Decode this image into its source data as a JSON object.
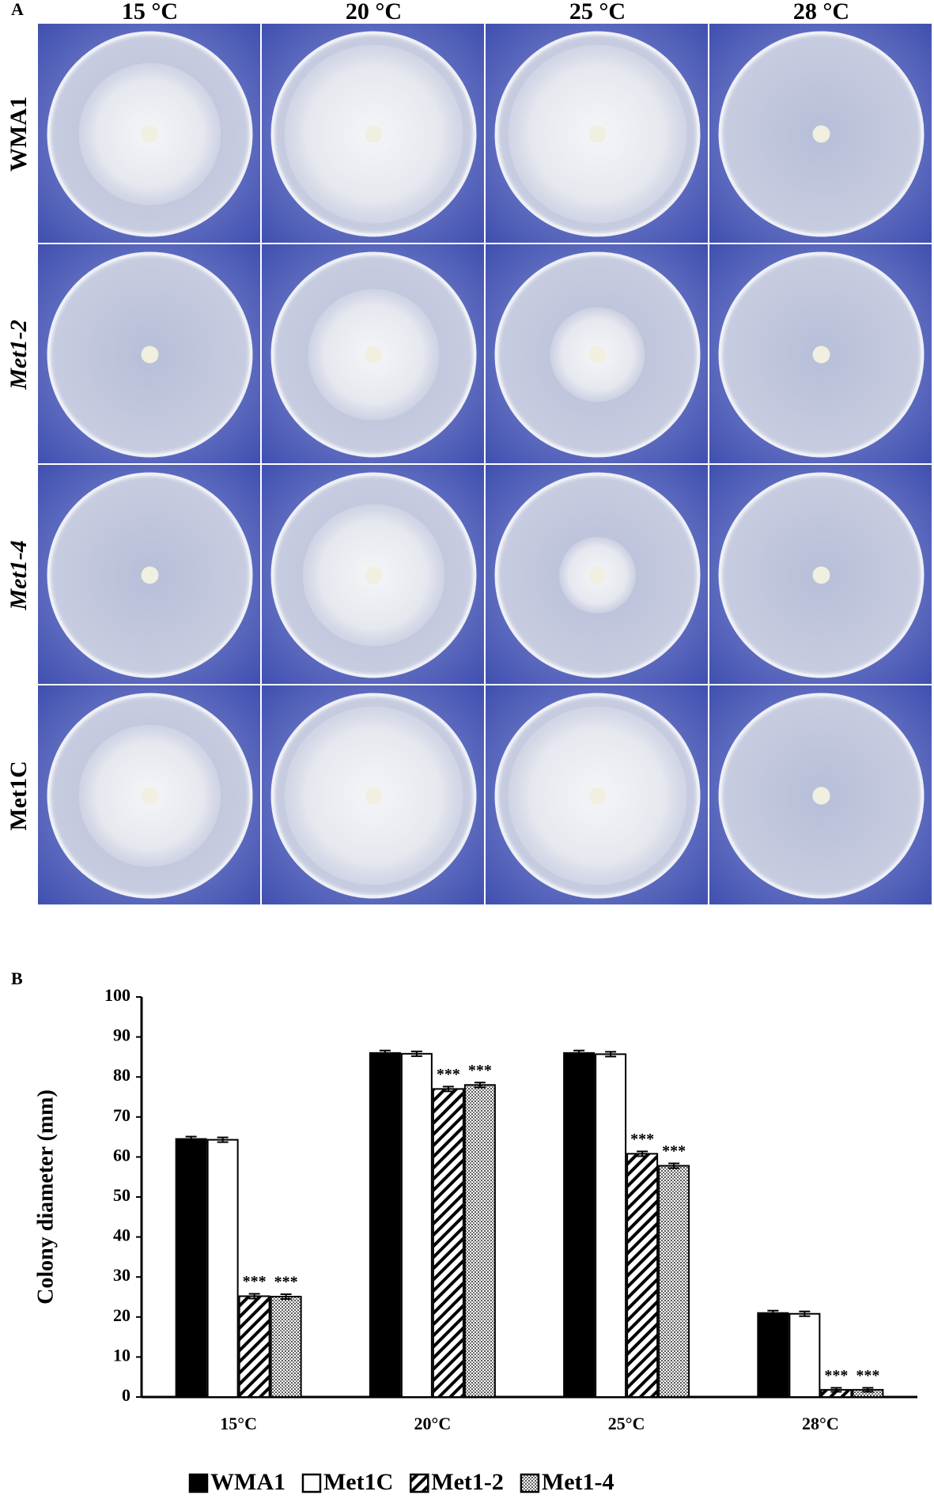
{
  "figure_a": {
    "label": "A",
    "columns": [
      "15 °C",
      "20 °C",
      "25 °C",
      "28 °C"
    ],
    "rows": [
      "WMA1",
      "Met1-2",
      "Met1-4",
      "Met1C"
    ]
  },
  "chart_data": {
    "type": "bar",
    "panel_label": "B",
    "y_label": "Colony diameter (mm)",
    "categories": [
      "15°C",
      "20°C",
      "25°C",
      "28°C"
    ],
    "ylim": [
      0,
      100
    ],
    "yticks": [
      0,
      10,
      20,
      30,
      40,
      50,
      60,
      70,
      80,
      90,
      100
    ],
    "legend": "bottom",
    "series": [
      {
        "name": "WMA1",
        "color": "#000000",
        "fill_pattern": "solid",
        "values": [
          64.5,
          86,
          86,
          21
        ],
        "errors": [
          0.6,
          0.6,
          0.6,
          0.6
        ],
        "annotations": [
          null,
          null,
          null,
          null
        ]
      },
      {
        "name": "Met1C",
        "color": "#ffffff",
        "fill_pattern": "solid",
        "values": [
          64.3,
          85.8,
          85.7,
          20.8
        ],
        "errors": [
          0.6,
          0.6,
          0.6,
          0.6
        ],
        "annotations": [
          null,
          null,
          null,
          null
        ]
      },
      {
        "name": "Met1-2",
        "color": "#000000",
        "fill_pattern": "diagonal",
        "values": [
          25.2,
          77,
          60.8,
          1.8
        ],
        "errors": [
          0.6,
          0.6,
          0.6,
          0.5
        ],
        "annotations": [
          "***",
          "***",
          "***",
          "***"
        ]
      },
      {
        "name": "Met1-4",
        "color": "#000000",
        "fill_pattern": "dots",
        "values": [
          25.1,
          78,
          57.8,
          1.8
        ],
        "errors": [
          0.6,
          0.6,
          0.6,
          0.5
        ],
        "annotations": [
          "***",
          "***",
          "***",
          "***"
        ]
      }
    ]
  }
}
